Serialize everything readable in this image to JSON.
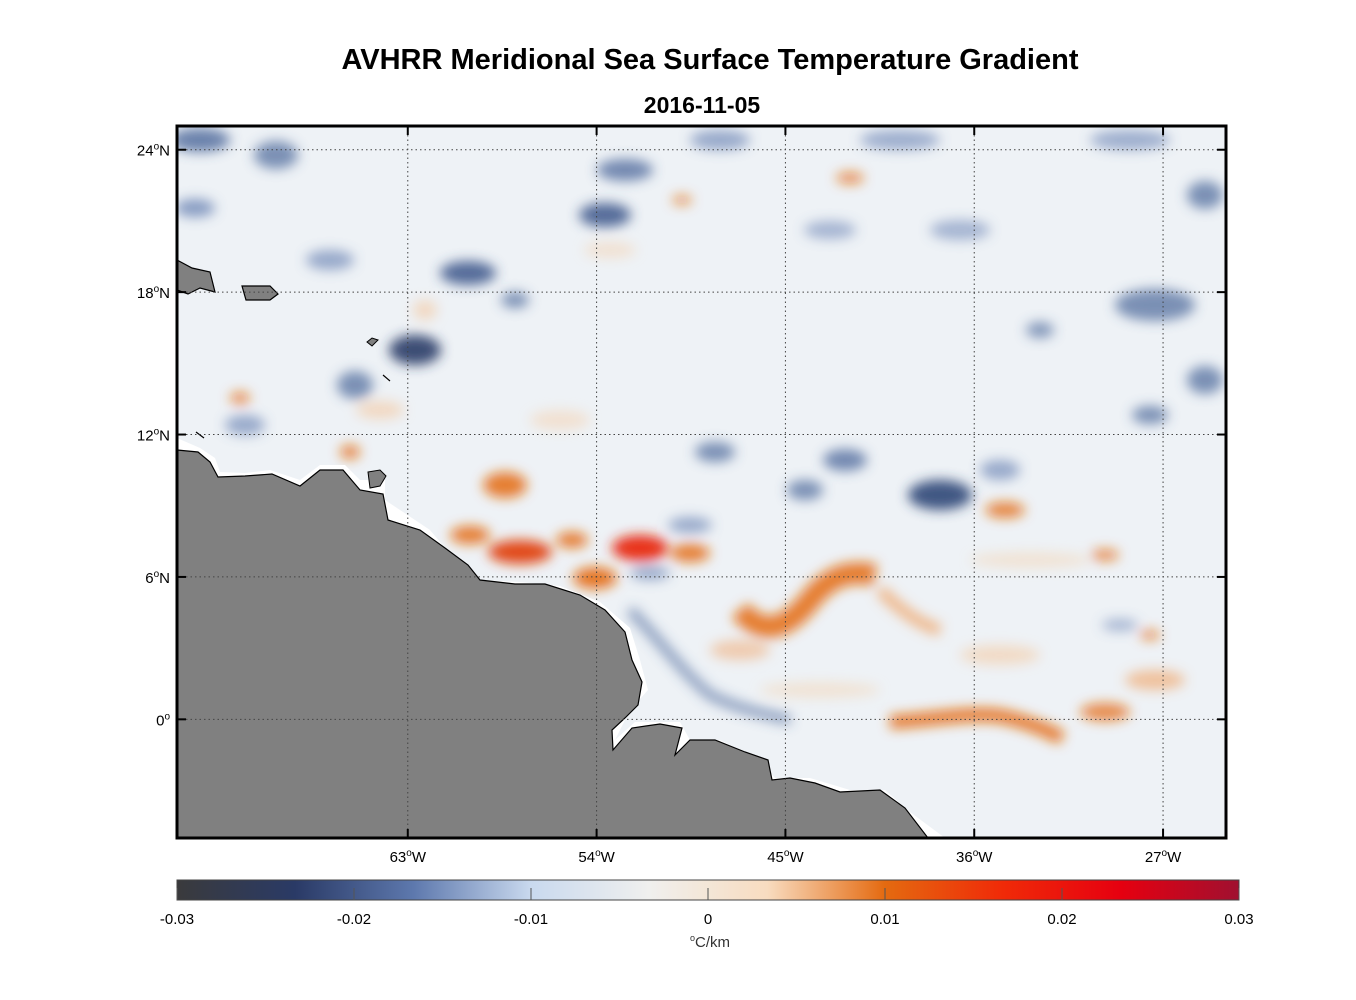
{
  "title": "AVHRR Meridional Sea Surface Temperature Gradient",
  "date": "2016-11-05",
  "map": {
    "lon_range": [
      -74,
      -24
    ],
    "lat_range": [
      -5,
      25
    ],
    "lon_ticks": [
      {
        "value": -63,
        "num": "63",
        "hemi": "W"
      },
      {
        "value": -54,
        "num": "54",
        "hemi": "W"
      },
      {
        "value": -45,
        "num": "45",
        "hemi": "W"
      },
      {
        "value": -36,
        "num": "36",
        "hemi": "W"
      },
      {
        "value": -27,
        "num": "27",
        "hemi": "W"
      }
    ],
    "lat_ticks": [
      {
        "value": 24,
        "num": "24",
        "hemi": "N"
      },
      {
        "value": 18,
        "num": "18",
        "hemi": "N"
      },
      {
        "value": 12,
        "num": "12",
        "hemi": "N"
      },
      {
        "value": 6,
        "num": "6",
        "hemi": "N"
      },
      {
        "value": 0,
        "num": "0",
        "hemi": ""
      }
    ],
    "gridlines": true,
    "land_color": "#808080",
    "ocean_base_color": "#eef2f6"
  },
  "colorbar": {
    "min": -0.03,
    "max": 0.03,
    "tick_labels": [
      "-0.03",
      "-0.02",
      "-0.01",
      "0",
      "0.01",
      "0.02",
      "0.03"
    ],
    "units": {
      "degree": "o",
      "text": "C/km"
    },
    "colors": [
      "#3a3a3c",
      "#2a3a66",
      "#5d78ad",
      "#c9d9ee",
      "#f0f0ee",
      "#f8dcc0",
      "#e46a10",
      "#f02a08",
      "#e60010",
      "#a01030"
    ]
  }
}
